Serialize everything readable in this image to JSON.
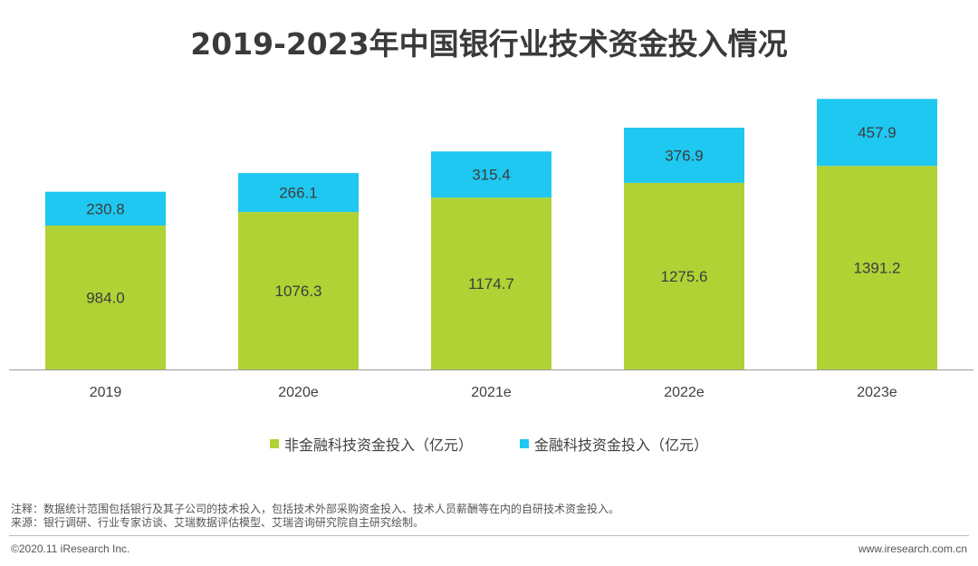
{
  "title": "2019-2023年中国银行业技术资金投入情况",
  "chart_data": {
    "type": "bar",
    "stacked": true,
    "categories": [
      "2019",
      "2020e",
      "2021e",
      "2022e",
      "2023e"
    ],
    "series": [
      {
        "name": "非金融科技资金投入（亿元）",
        "color": "#b0d235",
        "values": [
          984.0,
          1076.3,
          1174.7,
          1275.6,
          1391.2
        ]
      },
      {
        "name": "金融科技资金投入（亿元）",
        "color": "#1ec8f0",
        "values": [
          230.8,
          266.1,
          315.4,
          376.9,
          457.9
        ]
      }
    ],
    "ylim": [
      0,
      1900
    ],
    "value_labels": [
      [
        "984.0",
        "1076.3",
        "1174.7",
        "1275.6",
        "1391.2"
      ],
      [
        "230.8",
        "266.1",
        "315.4",
        "376.9",
        "457.9"
      ]
    ],
    "legend_position": "bottom"
  },
  "notes": {
    "line1": "注释：数据统计范围包括银行及其子公司的技术投入，包括技术外部采购资金投入、技术人员薪酬等在内的自研技术资金投入。",
    "line2": "来源：银行调研、行业专家访谈、艾瑞数据评估模型、艾瑞咨询研究院自主研究绘制。"
  },
  "footer": {
    "copyright": "©2020.11 iResearch Inc.",
    "website": "www.iresearch.com.cn"
  }
}
